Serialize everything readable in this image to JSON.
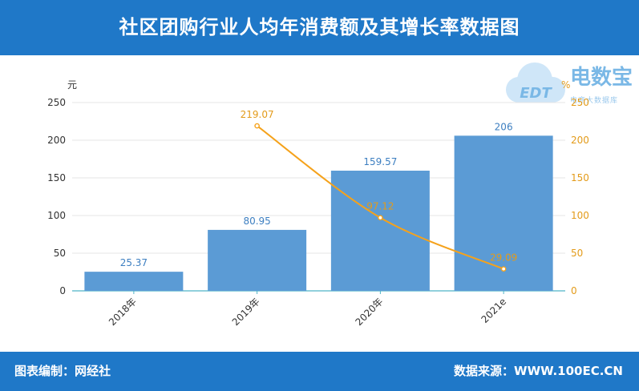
{
  "header": {
    "title": "社区团购行业人均年消费额及其增长率数据图"
  },
  "footer": {
    "left": "图表编制：网经社",
    "right": "数据来源：WWW.100EC.CN"
  },
  "logo": {
    "name": "电数宝",
    "mark": "EDT",
    "subtitle": "电商大数据库",
    "icon": "cloud-logo-icon"
  },
  "colors": {
    "header": "#1f78c8",
    "bar": "#5b9bd5",
    "line": "#f5a21b",
    "line_label": "#e39b1a",
    "bar_label": "#3d7fc1"
  },
  "chart_data": {
    "type": "bar",
    "categories": [
      "2018年",
      "2019年",
      "2020年",
      "2021e"
    ],
    "series": [
      {
        "type": "bar",
        "axis": "left",
        "values": [
          25.37,
          80.95,
          159.57,
          206
        ]
      },
      {
        "type": "line",
        "axis": "right",
        "values": [
          null,
          219.07,
          97.12,
          29.09
        ]
      }
    ],
    "left_axis": {
      "unit": "元",
      "ylim": [
        0,
        250
      ],
      "ticks": [
        0,
        50,
        100,
        150,
        200,
        250
      ]
    },
    "right_axis": {
      "unit": "%",
      "ylim": [
        0,
        250
      ],
      "ticks": [
        0,
        50,
        100,
        150,
        200,
        250
      ]
    },
    "grid": true
  }
}
